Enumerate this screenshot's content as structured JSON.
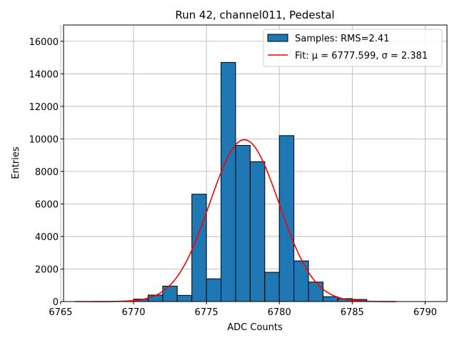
{
  "chart_data": {
    "type": "bar",
    "title": "Run 42, channel011, Pedestal",
    "xlabel": "ADC Counts",
    "ylabel": "Entries",
    "xlim": [
      6765.2,
      6791.5
    ],
    "ylim": [
      0,
      17000
    ],
    "grid": true,
    "legend_position": "top-right",
    "xticks": [
      6765,
      6770,
      6775,
      6780,
      6785,
      6790
    ],
    "xtick_labels": [
      "6765",
      "6770",
      "6775",
      "6780",
      "6785",
      "6790"
    ],
    "yticks": [
      0,
      2000,
      4000,
      6000,
      8000,
      10000,
      12000,
      14000,
      16000
    ],
    "ytick_labels": [
      "0",
      "2000",
      "4000",
      "6000",
      "8000",
      "10000",
      "12000",
      "14000",
      "16000"
    ],
    "bin_width": 1,
    "histogram": {
      "name": "Samples: RMS=2.41",
      "color": "#1f77b4",
      "edge_color": "#000000",
      "bins": [
        {
          "x0": 6770,
          "x1": 6771,
          "count": 150
        },
        {
          "x0": 6771,
          "x1": 6772,
          "count": 400
        },
        {
          "x0": 6772,
          "x1": 6773,
          "count": 950
        },
        {
          "x0": 6773,
          "x1": 6774,
          "count": 380
        },
        {
          "x0": 6774,
          "x1": 6775,
          "count": 6600
        },
        {
          "x0": 6775,
          "x1": 6776,
          "count": 1400
        },
        {
          "x0": 6776,
          "x1": 6777,
          "count": 14700
        },
        {
          "x0": 6777,
          "x1": 6778,
          "count": 9600
        },
        {
          "x0": 6778,
          "x1": 6779,
          "count": 8600
        },
        {
          "x0": 6779,
          "x1": 6780,
          "count": 1800
        },
        {
          "x0": 6780,
          "x1": 6781,
          "count": 10200
        },
        {
          "x0": 6781,
          "x1": 6782,
          "count": 2500
        },
        {
          "x0": 6782,
          "x1": 6783,
          "count": 1200
        },
        {
          "x0": 6783,
          "x1": 6784,
          "count": 300
        },
        {
          "x0": 6784,
          "x1": 6785,
          "count": 180
        },
        {
          "x0": 6785,
          "x1": 6786,
          "count": 130
        }
      ]
    },
    "fit": {
      "name": "Fit: μ = 6777.599, σ = 2.381",
      "color": "#ff0000",
      "mu": 6777.599,
      "sigma": 2.381,
      "amplitude": 9950,
      "x_range": [
        6766,
        6788
      ]
    }
  }
}
